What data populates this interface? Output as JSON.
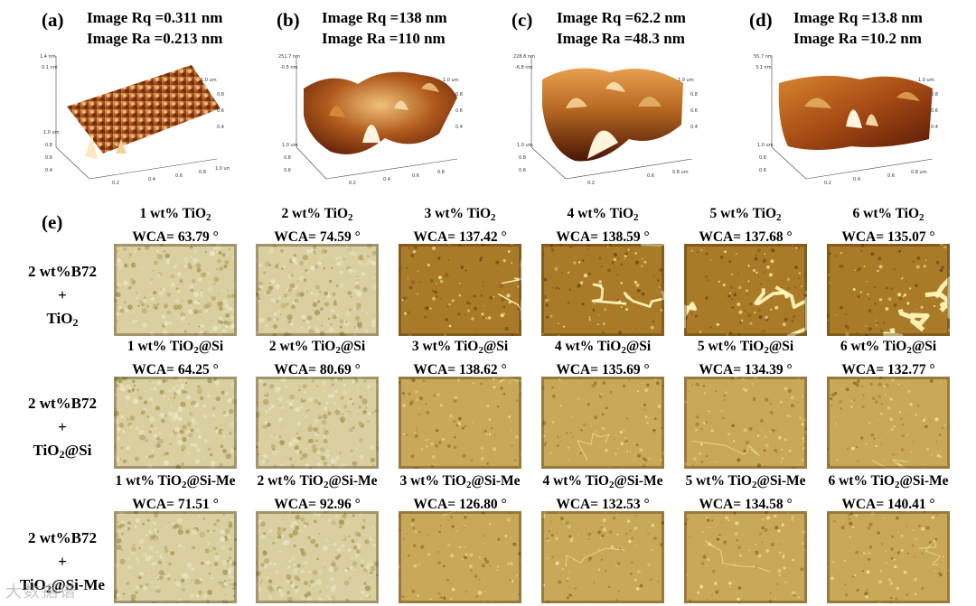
{
  "afm_panels": [
    {
      "label": "(a)",
      "rq": "Image Rq =0.311 nm",
      "ra": "Image Ra =0.213 nm"
    },
    {
      "label": "(b)",
      "rq": "Image Rq =138 nm",
      "ra": "Image Ra =110 nm"
    },
    {
      "label": "(c)",
      "rq": "Image Rq =62.2 nm",
      "ra": "Image Ra =48.3 nm"
    },
    {
      "label": "(d)",
      "rq": "Image Rq =13.8 nm",
      "ra": "Image Ra =10.2 nm"
    }
  ],
  "panel_e": {
    "label": "(e)",
    "rows": [
      {
        "label": [
          "2 wt%B72",
          "+",
          "TiO",
          "2",
          ""
        ],
        "columns": [
          {
            "name": "1 wt% TiO",
            "sub": "2",
            "suffix": "",
            "wca": "WCA= 63.79 °"
          },
          {
            "name": "2 wt% TiO",
            "sub": "2",
            "suffix": "",
            "wca": "WCA= 74.59 °"
          },
          {
            "name": "3 wt% TiO",
            "sub": "2",
            "suffix": "",
            "wca": "WCA= 137.42 °"
          },
          {
            "name": "4 wt% TiO",
            "sub": "2",
            "suffix": "",
            "wca": "WCA= 138.59 °"
          },
          {
            "name": "5 wt% TiO",
            "sub": "2",
            "suffix": "",
            "wca": "WCA= 137.68 °"
          },
          {
            "name": "6 wt% TiO",
            "sub": "2",
            "suffix": "",
            "wca": "WCA= 135.07 °"
          }
        ]
      },
      {
        "label": [
          "2 wt%B72",
          "+",
          "TiO",
          "2",
          "@Si"
        ],
        "columns": [
          {
            "name": "1 wt% TiO",
            "sub": "2",
            "suffix": "@Si",
            "wca": "WCA= 64.25 °"
          },
          {
            "name": "2 wt% TiO",
            "sub": "2",
            "suffix": "@Si",
            "wca": "WCA= 80.69 °"
          },
          {
            "name": "3 wt% TiO",
            "sub": "2",
            "suffix": "@Si",
            "wca": "WCA= 138.62 °"
          },
          {
            "name": "4 wt% TiO",
            "sub": "2",
            "suffix": "@Si",
            "wca": "WCA= 135.69 °"
          },
          {
            "name": "5 wt% TiO",
            "sub": "2",
            "suffix": "@Si",
            "wca": "WCA= 134.39 °"
          },
          {
            "name": "6 wt% TiO",
            "sub": "2",
            "suffix": "@Si",
            "wca": "WCA= 132.77 °"
          }
        ]
      },
      {
        "label": [
          "2 wt%B72",
          "+",
          "TiO",
          "2",
          "@Si-Me"
        ],
        "columns": [
          {
            "name": "1 wt% TiO",
            "sub": "2",
            "suffix": "@Si-Me",
            "wca": "WCA= 71.51 °"
          },
          {
            "name": "2 wt% TiO",
            "sub": "2",
            "suffix": "@Si-Me",
            "wca": "WCA= 92.96 °"
          },
          {
            "name": "3 wt% TiO",
            "sub": "2",
            "suffix": "@Si-Me",
            "wca": "WCA= 126.80 °"
          },
          {
            "name": "4 wt% TiO",
            "sub": "2",
            "suffix": "@Si-Me",
            "wca": "WCA= 132.53 °"
          },
          {
            "name": "5 wt% TiO",
            "sub": "2",
            "suffix": "@Si-Me",
            "wca": "WCA= 134.58 °"
          },
          {
            "name": "6 wt% TiO",
            "sub": "2",
            "suffix": "@Si-Me",
            "wca": "WCA= 140.41 °"
          }
        ]
      }
    ]
  },
  "watermark": "大数据谱",
  "colors": {
    "afm_dark": "#5a1a08",
    "afm_mid": "#c0681e",
    "afm_light": "#f6e9c8",
    "micro_base": "#b89a3e"
  }
}
